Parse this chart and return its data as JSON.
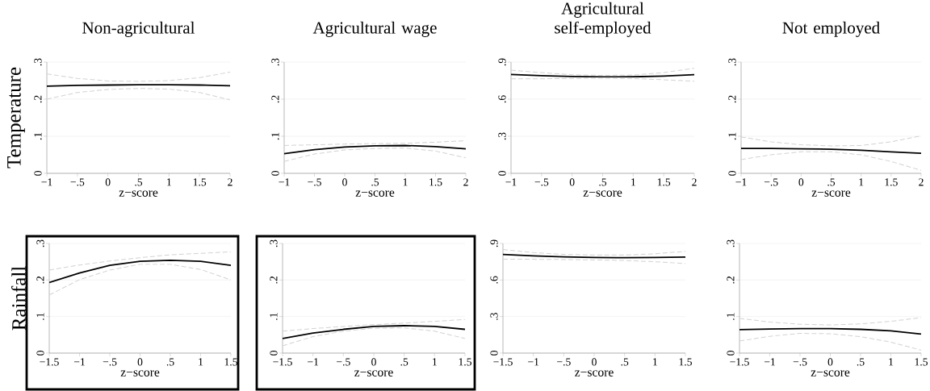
{
  "chart_data": [
    {
      "type": "line",
      "title": "Non-agricultural",
      "ylabel": "Temperature",
      "xlabel": "z−score",
      "xlim": [
        -1,
        2
      ],
      "xticks": [
        {
          "value": -1,
          "label": "−1"
        },
        {
          "value": -0.5,
          "label": "−.5"
        },
        0,
        {
          "value": 0.5,
          "label": ".5"
        },
        1,
        1.5,
        2
      ],
      "ylim": [
        0,
        0.3
      ],
      "yticks": [
        0,
        {
          "value": 0.1,
          "label": ".1"
        },
        {
          "value": 0.2,
          "label": ".2"
        },
        {
          "value": 0.3,
          "label": ".3"
        }
      ],
      "grid": "y",
      "x": [
        -1,
        -0.5,
        0,
        0.5,
        1,
        1.5,
        2
      ],
      "series": [
        {
          "color": "#000000",
          "line_style": "solid",
          "values": [
            0.235,
            0.237,
            0.238,
            0.239,
            0.239,
            0.238,
            0.236
          ]
        },
        {
          "color": "#d2d2d2",
          "line_style": "dashed",
          "values": [
            0.2,
            0.218,
            0.226,
            0.229,
            0.227,
            0.218,
            0.198
          ]
        },
        {
          "color": "#d2d2d2",
          "line_style": "dashed",
          "values": [
            0.268,
            0.256,
            0.249,
            0.248,
            0.25,
            0.258,
            0.273
          ]
        }
      ]
    },
    {
      "type": "line",
      "title": "Agricultural wage",
      "xlabel": "z−score",
      "xlim": [
        -1,
        2
      ],
      "xticks": [
        {
          "value": -1,
          "label": "−1"
        },
        {
          "value": -0.5,
          "label": "−.5"
        },
        0,
        {
          "value": 0.5,
          "label": ".5"
        },
        1,
        1.5,
        2
      ],
      "ylim": [
        0,
        0.3
      ],
      "yticks": [
        0,
        {
          "value": 0.1,
          "label": ".1"
        },
        {
          "value": 0.2,
          "label": ".2"
        },
        {
          "value": 0.3,
          "label": ".3"
        }
      ],
      "grid": "y",
      "x": [
        -1,
        -0.5,
        0,
        0.5,
        1,
        1.5,
        2
      ],
      "series": [
        {
          "color": "#000000",
          "line_style": "solid",
          "values": [
            0.053,
            0.064,
            0.071,
            0.074,
            0.075,
            0.072,
            0.066
          ]
        },
        {
          "color": "#d2d2d2",
          "line_style": "dashed",
          "values": [
            0.032,
            0.052,
            0.063,
            0.067,
            0.068,
            0.06,
            0.042
          ]
        },
        {
          "color": "#d2d2d2",
          "line_style": "dashed",
          "values": [
            0.075,
            0.077,
            0.079,
            0.08,
            0.081,
            0.084,
            0.088
          ]
        }
      ]
    },
    {
      "type": "line",
      "title": "Agricultural self-employed",
      "xlabel": "z−score",
      "xlim": [
        -1,
        2
      ],
      "xticks": [
        {
          "value": -1,
          "label": "−1"
        },
        {
          "value": -0.5,
          "label": "−.5"
        },
        0,
        {
          "value": 0.5,
          "label": ".5"
        },
        1,
        1.5,
        2
      ],
      "ylim": [
        0,
        0.9
      ],
      "yticks": [
        0,
        {
          "value": 0.3,
          "label": ".3"
        },
        {
          "value": 0.6,
          "label": ".6"
        },
        {
          "value": 0.9,
          "label": ".9"
        }
      ],
      "grid": "y",
      "x": [
        -1,
        -0.5,
        0,
        0.5,
        1,
        1.5,
        2
      ],
      "series": [
        {
          "color": "#000000",
          "line_style": "solid",
          "values": [
            0.8,
            0.79,
            0.783,
            0.78,
            0.781,
            0.787,
            0.798
          ]
        },
        {
          "color": "#d2d2d2",
          "line_style": "dashed",
          "values": [
            0.765,
            0.765,
            0.768,
            0.77,
            0.767,
            0.757,
            0.745
          ]
        },
        {
          "color": "#d2d2d2",
          "line_style": "dashed",
          "values": [
            0.835,
            0.815,
            0.798,
            0.792,
            0.795,
            0.815,
            0.85
          ]
        }
      ]
    },
    {
      "type": "line",
      "title": "Not employed",
      "xlabel": "z−score",
      "xlim": [
        -1,
        2
      ],
      "xticks": [
        {
          "value": -1,
          "label": "−1"
        },
        {
          "value": -0.5,
          "label": "−.5"
        },
        0,
        {
          "value": 0.5,
          "label": ".5"
        },
        1,
        1.5,
        2
      ],
      "ylim": [
        0,
        0.3
      ],
      "yticks": [
        0,
        {
          "value": 0.1,
          "label": ".1"
        },
        {
          "value": 0.2,
          "label": ".2"
        },
        {
          "value": 0.3,
          "label": ".3"
        }
      ],
      "grid": "y",
      "x": [
        -1,
        -0.5,
        0,
        0.5,
        1,
        1.5,
        2
      ],
      "series": [
        {
          "color": "#000000",
          "line_style": "solid",
          "values": [
            0.067,
            0.067,
            0.066,
            0.065,
            0.062,
            0.058,
            0.054
          ]
        },
        {
          "color": "#d2d2d2",
          "line_style": "dashed",
          "values": [
            0.037,
            0.05,
            0.058,
            0.058,
            0.05,
            0.032,
            0.008
          ]
        },
        {
          "color": "#d2d2d2",
          "line_style": "dashed",
          "values": [
            0.098,
            0.085,
            0.077,
            0.074,
            0.075,
            0.085,
            0.101
          ]
        }
      ]
    },
    {
      "type": "line",
      "ylabel": "Rainfall",
      "xlabel": "z−score",
      "xlim": [
        -1.5,
        1.5
      ],
      "xticks": [
        {
          "value": -1.5,
          "label": "−1.5"
        },
        {
          "value": -1,
          "label": "−1"
        },
        {
          "value": -0.5,
          "label": "−.5"
        },
        0,
        {
          "value": 0.5,
          "label": ".5"
        },
        1,
        1.5
      ],
      "ylim": [
        0,
        0.3
      ],
      "yticks": [
        0,
        {
          "value": 0.1,
          "label": ".1"
        },
        {
          "value": 0.2,
          "label": ".2"
        },
        {
          "value": 0.3,
          "label": ".3"
        }
      ],
      "grid": "y",
      "x": [
        -1.5,
        -1,
        -0.5,
        0,
        0.5,
        1,
        1.5
      ],
      "series": [
        {
          "color": "#000000",
          "line_style": "solid",
          "values": [
            0.193,
            0.219,
            0.24,
            0.251,
            0.254,
            0.251,
            0.24
          ]
        },
        {
          "color": "#d2d2d2",
          "line_style": "dashed",
          "values": [
            0.159,
            0.201,
            0.227,
            0.243,
            0.243,
            0.229,
            0.2
          ]
        },
        {
          "color": "#d2d2d2",
          "line_style": "dashed",
          "values": [
            0.227,
            0.241,
            0.252,
            0.261,
            0.269,
            0.273,
            0.277
          ]
        }
      ]
    },
    {
      "type": "line",
      "xlabel": "z−score",
      "xlim": [
        -1.5,
        1.5
      ],
      "xticks": [
        {
          "value": -1.5,
          "label": "−1.5"
        },
        {
          "value": -1,
          "label": "−1"
        },
        {
          "value": -0.5,
          "label": "−.5"
        },
        0,
        {
          "value": 0.5,
          "label": ".5"
        },
        1,
        1.5
      ],
      "ylim": [
        0,
        0.3
      ],
      "yticks": [
        0,
        {
          "value": 0.1,
          "label": ".1"
        },
        {
          "value": 0.2,
          "label": ".2"
        },
        {
          "value": 0.3,
          "label": ".3"
        }
      ],
      "grid": "y",
      "x": [
        -1.5,
        -1,
        -0.5,
        0,
        0.5,
        1,
        1.5
      ],
      "series": [
        {
          "color": "#000000",
          "line_style": "solid",
          "values": [
            0.04,
            0.055,
            0.065,
            0.073,
            0.075,
            0.073,
            0.065
          ]
        },
        {
          "color": "#d2d2d2",
          "line_style": "dashed",
          "values": [
            0.02,
            0.045,
            0.06,
            0.068,
            0.069,
            0.06,
            0.04
          ]
        },
        {
          "color": "#d2d2d2",
          "line_style": "dashed",
          "values": [
            0.06,
            0.067,
            0.073,
            0.078,
            0.082,
            0.087,
            0.092
          ]
        }
      ]
    },
    {
      "type": "line",
      "xlabel": "z−score",
      "xlim": [
        -1.5,
        1.5
      ],
      "xticks": [
        {
          "value": -1.5,
          "label": "−1.5"
        },
        {
          "value": -1,
          "label": "−1"
        },
        {
          "value": -0.5,
          "label": "−.5"
        },
        0,
        {
          "value": 0.5,
          "label": ".5"
        },
        1,
        1.5
      ],
      "ylim": [
        0,
        0.9
      ],
      "yticks": [
        0,
        {
          "value": 0.3,
          "label": ".3"
        },
        {
          "value": 0.6,
          "label": ".6"
        },
        {
          "value": 0.9,
          "label": ".9"
        }
      ],
      "grid": "y",
      "x": [
        -1.5,
        -1,
        -0.5,
        0,
        0.5,
        1,
        1.5
      ],
      "series": [
        {
          "color": "#000000",
          "line_style": "solid",
          "values": [
            0.81,
            0.798,
            0.79,
            0.785,
            0.783,
            0.785,
            0.788
          ]
        },
        {
          "color": "#d2d2d2",
          "line_style": "dashed",
          "values": [
            0.77,
            0.77,
            0.768,
            0.765,
            0.76,
            0.75,
            0.735
          ]
        },
        {
          "color": "#d2d2d2",
          "line_style": "dashed",
          "values": [
            0.85,
            0.825,
            0.81,
            0.805,
            0.805,
            0.815,
            0.835
          ]
        }
      ]
    },
    {
      "type": "line",
      "xlabel": "z−score",
      "xlim": [
        -1.5,
        1.5
      ],
      "xticks": [
        {
          "value": -1.5,
          "label": "−1.5"
        },
        {
          "value": -1,
          "label": "−1"
        },
        {
          "value": -0.5,
          "label": "−.5"
        },
        0,
        {
          "value": 0.5,
          "label": ".5"
        },
        1,
        1.5
      ],
      "ylim": [
        0,
        0.3
      ],
      "yticks": [
        0,
        {
          "value": 0.1,
          "label": ".1"
        },
        {
          "value": 0.2,
          "label": ".2"
        },
        {
          "value": 0.3,
          "label": ".3"
        }
      ],
      "grid": "y",
      "x": [
        -1.5,
        -1,
        -0.5,
        0,
        0.5,
        1,
        1.5
      ],
      "series": [
        {
          "color": "#000000",
          "line_style": "solid",
          "values": [
            0.064,
            0.066,
            0.067,
            0.067,
            0.065,
            0.061,
            0.052
          ]
        },
        {
          "color": "#d2d2d2",
          "line_style": "dashed",
          "values": [
            0.033,
            0.046,
            0.054,
            0.053,
            0.045,
            0.03,
            0.008
          ]
        },
        {
          "color": "#d2d2d2",
          "line_style": "dashed",
          "values": [
            0.095,
            0.085,
            0.079,
            0.077,
            0.08,
            0.087,
            0.097
          ]
        }
      ]
    }
  ]
}
